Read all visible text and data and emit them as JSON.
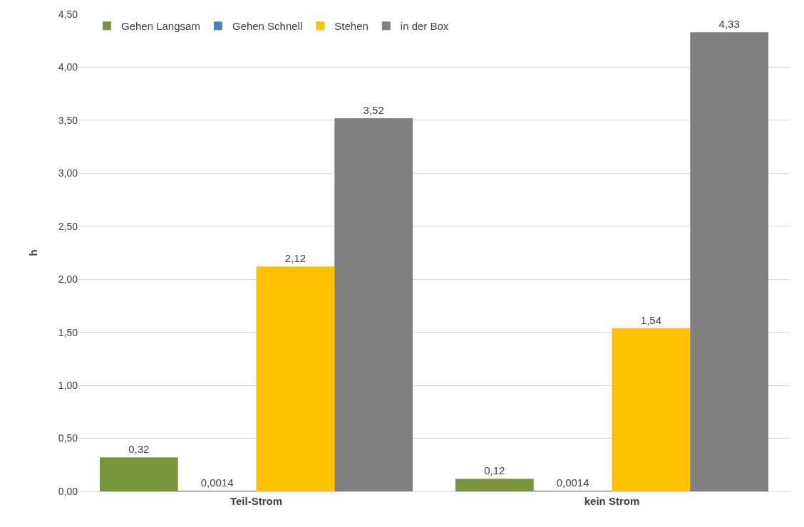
{
  "chart_data": {
    "type": "bar",
    "ylabel": "h",
    "categories": [
      "Teil-Strom",
      "kein Strom"
    ],
    "series": [
      {
        "name": "Gehen Langsam",
        "color": "#77933c",
        "values": [
          0.32,
          0.12
        ],
        "value_labels": [
          "0,32",
          "0,12"
        ]
      },
      {
        "name": "Gehen Schnell",
        "color": "#4f81bd",
        "values": [
          0.0014,
          0.0014
        ],
        "value_labels": [
          "0,0014",
          "0,0014"
        ]
      },
      {
        "name": "Stehen",
        "color": "#ffc000",
        "values": [
          2.12,
          1.54
        ],
        "value_labels": [
          "2,12",
          "1,54"
        ]
      },
      {
        "name": "in der Box",
        "color": "#808080",
        "values": [
          3.52,
          4.33
        ],
        "value_labels": [
          "3,52",
          "4,33"
        ]
      }
    ],
    "ylim": [
      0,
      4.5
    ],
    "yticks": [
      {
        "value": 0,
        "label": "0,00"
      },
      {
        "value": 0.5,
        "label": "0,50"
      },
      {
        "value": 1,
        "label": "1,00"
      },
      {
        "value": 1.5,
        "label": "1,50"
      },
      {
        "value": 2,
        "label": "2,00"
      },
      {
        "value": 2.5,
        "label": "2,50"
      },
      {
        "value": 3,
        "label": "3,00"
      },
      {
        "value": 3.5,
        "label": "3,50"
      },
      {
        "value": 4,
        "label": "4,00"
      },
      {
        "value": 4.5,
        "label": "4,50"
      }
    ],
    "grid": "y",
    "legend": "top left"
  }
}
